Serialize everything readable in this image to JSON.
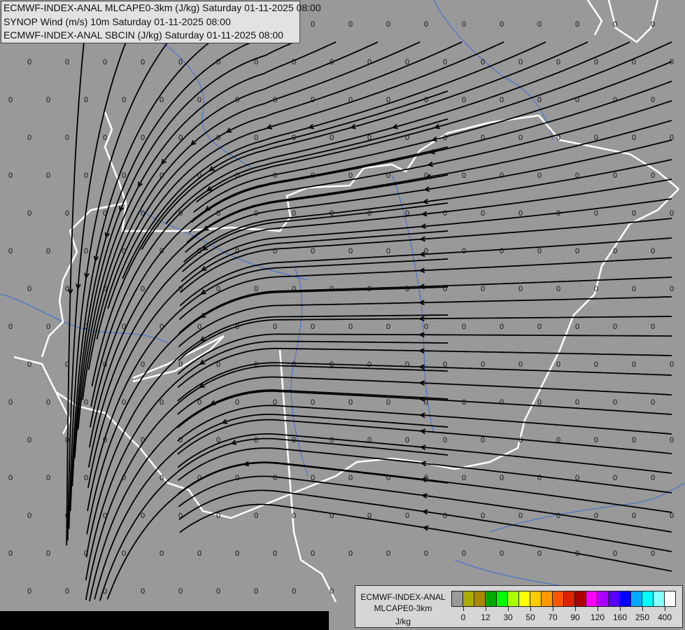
{
  "header": {
    "lines": [
      "ECMWF-INDEX-ANAL MLCAPE0-3km (J/kg) Saturday 01-11-2025 08:00",
      "SYNOP Wind (m/s) 10m Saturday 01-11-2025 08:00",
      "ECMWF-INDEX-ANAL SBCIN (J/kg) Saturday 01-11-2025 08:00"
    ]
  },
  "map": {
    "station_value": "0",
    "colors": {
      "background": "#999999",
      "border": "#ffffff",
      "river": "#3a6fd8",
      "streamline": "#000000"
    }
  },
  "legend": {
    "model": "ECMWF-INDEX-ANAL",
    "parameter": "MLCAPE0-3km",
    "unit": "J/kg",
    "ticks": [
      "0",
      "12",
      "30",
      "50",
      "70",
      "90",
      "120",
      "160",
      "250",
      "400"
    ],
    "colors": [
      "#999999",
      "#aaaa00",
      "#aa8800",
      "#00aa00",
      "#00ff00",
      "#aaff00",
      "#ffff00",
      "#ffcc00",
      "#ff9900",
      "#ff5500",
      "#dd2200",
      "#aa0000",
      "#ff00ff",
      "#aa00ff",
      "#5500ff",
      "#0000ff",
      "#00aaff",
      "#00ffff",
      "#88ffff",
      "#ffffff"
    ]
  }
}
